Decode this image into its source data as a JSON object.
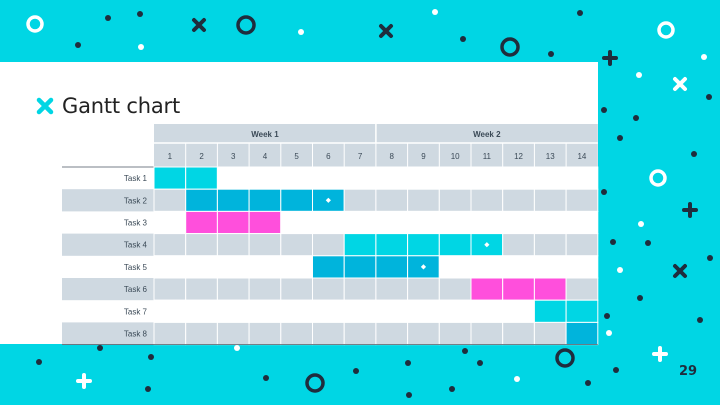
{
  "slide": {
    "title": "Gantt chart",
    "page_number": "29"
  },
  "colors": {
    "background": "#00d6e4",
    "panel": "#ffffff",
    "grid": "#cfd9e1",
    "cyan": "#00d6e4",
    "blue": "#00b4dc",
    "magenta": "#ff4fdc",
    "milestone": "#ffffff",
    "dark": "#1f2d3d"
  },
  "gantt": {
    "weeks": [
      "Week 1",
      "Week 2"
    ],
    "days": [
      "1",
      "2",
      "3",
      "4",
      "5",
      "6",
      "7",
      "8",
      "9",
      "10",
      "11",
      "12",
      "13",
      "14"
    ],
    "tasks": [
      {
        "label": "Task 1",
        "start": 1,
        "end": 2,
        "color": "#00d6e4",
        "milestone": null
      },
      {
        "label": "Task 2",
        "start": 2,
        "end": 6,
        "color": "#00b4dc",
        "milestone": 6
      },
      {
        "label": "Task 3",
        "start": 2,
        "end": 4,
        "color": "#ff4fdc",
        "milestone": null
      },
      {
        "label": "Task 4",
        "start": 7,
        "end": 11,
        "color": "#00d6e4",
        "milestone": 11
      },
      {
        "label": "Task 5",
        "start": 6,
        "end": 9,
        "color": "#00b4dc",
        "milestone": 9
      },
      {
        "label": "Task 6",
        "start": 11,
        "end": 13,
        "color": "#ff4fdc",
        "milestone": null
      },
      {
        "label": "Task 7",
        "start": 13,
        "end": 14,
        "color": "#00d6e4",
        "milestone": null
      },
      {
        "label": "Task 8",
        "start": 14,
        "end": 14,
        "color": "#00b4dc",
        "milestone": null
      }
    ]
  },
  "decorations": {
    "icons": [
      "circle-ring-icon",
      "cross-icon",
      "plus-icon",
      "dot-icon",
      "x-icon"
    ]
  }
}
